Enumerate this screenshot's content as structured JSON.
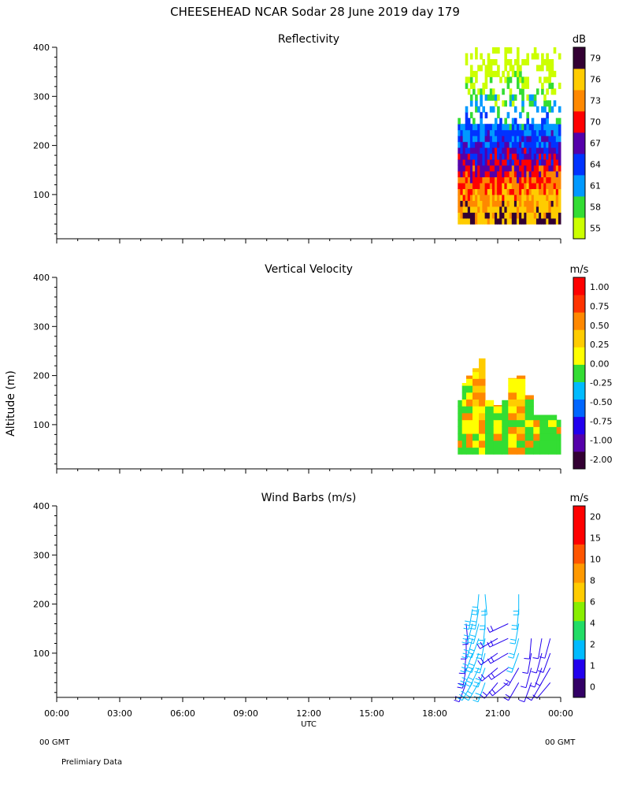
{
  "figure": {
    "title": "CHEESEHEAD  NCAR Sodar  28 June 2019  day 179",
    "ylabel": "Altitude (m)",
    "xlabel": "UTC",
    "left_footer": "00 GMT",
    "right_footer": "00 GMT",
    "footnote": "Prelimiary Data"
  },
  "chart_data": [
    {
      "type": "heatmap",
      "title": "Reflectivity",
      "ylabel": "Altitude (m)",
      "xlabel": "UTC",
      "x_ticks": [
        "00:00",
        "03:00",
        "06:00",
        "09:00",
        "12:00",
        "15:00",
        "18:00",
        "21:00",
        "00:00"
      ],
      "y_ticks": [
        100,
        200,
        300,
        400
      ],
      "xlim_hours": [
        0,
        24
      ],
      "ylim": [
        10,
        400
      ],
      "data_time_range_hours": [
        19.1,
        24.0
      ],
      "data_alt_range_m": [
        40,
        400
      ],
      "colorbar": {
        "unit": "dB",
        "levels": [
          "55",
          "58",
          "61",
          "64",
          "67",
          "70",
          "73",
          "76",
          "79"
        ],
        "colors": [
          "#ccff00",
          "#33dd33",
          "#0099ff",
          "#0033ff",
          "#5500aa",
          "#ff0000",
          "#ff8800",
          "#ffcc00",
          "#330033"
        ]
      },
      "profile": {
        "times_h": [
          19.1,
          19.4,
          19.7,
          20.0,
          20.3,
          20.6,
          20.9,
          21.2,
          21.5,
          21.8,
          22.1,
          22.4,
          22.7,
          23.0,
          23.3,
          23.6,
          23.9
        ],
        "note_levels": "lower altitudes have higher reflectivity (70-79 dB near 40 m), decreasing to 55-58 dB above ~250 m"
      }
    },
    {
      "type": "heatmap",
      "title": "Vertical Velocity",
      "ylabel": "Altitude (m)",
      "xlabel": "UTC",
      "x_ticks": [
        "00:00",
        "03:00",
        "06:00",
        "09:00",
        "12:00",
        "15:00",
        "18:00",
        "21:00",
        "00:00"
      ],
      "y_ticks": [
        100,
        200,
        300,
        400
      ],
      "xlim_hours": [
        0,
        24
      ],
      "ylim": [
        10,
        400
      ],
      "data_time_range_hours": [
        19.1,
        24.0
      ],
      "data_alt_range_m": [
        40,
        240
      ],
      "colorbar": {
        "unit": "m/s",
        "levels": [
          "-2.00",
          "-1.00",
          "-0.75",
          "-0.50",
          "-0.25",
          "0.00",
          "0.25",
          "0.50",
          "0.75",
          "1.00"
        ],
        "colors": [
          "#330033",
          "#5500aa",
          "#2200ee",
          "#0066ff",
          "#00bbff",
          "#33dd33",
          "#ffff00",
          "#ffcc00",
          "#ff8800",
          "#ff3300",
          "#ff0000"
        ]
      }
    },
    {
      "type": "scatter",
      "title": "Wind Barbs (m/s)",
      "ylabel": "Altitude (m)",
      "xlabel": "UTC",
      "x_ticks": [
        "00:00",
        "03:00",
        "06:00",
        "09:00",
        "12:00",
        "15:00",
        "18:00",
        "21:00",
        "00:00"
      ],
      "y_ticks": [
        100,
        200,
        300,
        400
      ],
      "xlim_hours": [
        0,
        24
      ],
      "ylim": [
        10,
        400
      ],
      "colorbar": {
        "unit": "m/s",
        "levels": [
          "0",
          "1",
          "2",
          "4",
          "6",
          "8",
          "10",
          "15",
          "20"
        ],
        "colors": [
          "#330066",
          "#2200ee",
          "#00bbff",
          "#22dd66",
          "#88ee00",
          "#ffcc00",
          "#ff9900",
          "#ff5500",
          "#ff0000",
          "#ff0000"
        ]
      },
      "barbs": [
        {
          "t": 19.5,
          "alt": 40,
          "speed": 1.5,
          "dir": 200
        },
        {
          "t": 19.5,
          "alt": 70,
          "speed": 1.5,
          "dir": 190
        },
        {
          "t": 19.5,
          "alt": 100,
          "speed": 1.2,
          "dir": 185
        },
        {
          "t": 19.5,
          "alt": 130,
          "speed": 1.2,
          "dir": 180
        },
        {
          "t": 19.5,
          "alt": 160,
          "speed": 1.0,
          "dir": 175
        },
        {
          "t": 19.8,
          "alt": 40,
          "speed": 2.5,
          "dir": 210
        },
        {
          "t": 19.8,
          "alt": 70,
          "speed": 2.5,
          "dir": 205
        },
        {
          "t": 19.8,
          "alt": 100,
          "speed": 2.5,
          "dir": 200
        },
        {
          "t": 19.8,
          "alt": 130,
          "speed": 2.5,
          "dir": 195
        },
        {
          "t": 19.8,
          "alt": 160,
          "speed": 2.5,
          "dir": 195
        },
        {
          "t": 19.8,
          "alt": 190,
          "speed": 2.5,
          "dir": 190
        },
        {
          "t": 20.1,
          "alt": 40,
          "speed": 3.0,
          "dir": 210
        },
        {
          "t": 20.1,
          "alt": 70,
          "speed": 3.0,
          "dir": 205
        },
        {
          "t": 20.1,
          "alt": 100,
          "speed": 3.0,
          "dir": 200
        },
        {
          "t": 20.1,
          "alt": 130,
          "speed": 3.0,
          "dir": 200
        },
        {
          "t": 20.1,
          "alt": 160,
          "speed": 3.0,
          "dir": 195
        },
        {
          "t": 20.1,
          "alt": 190,
          "speed": 2.5,
          "dir": 190
        },
        {
          "t": 20.1,
          "alt": 220,
          "speed": 2.5,
          "dir": 185
        },
        {
          "t": 20.4,
          "alt": 40,
          "speed": 2.5,
          "dir": 200
        },
        {
          "t": 20.4,
          "alt": 70,
          "speed": 2.5,
          "dir": 200
        },
        {
          "t": 20.4,
          "alt": 100,
          "speed": 2.0,
          "dir": 195
        },
        {
          "t": 20.4,
          "alt": 130,
          "speed": 2.0,
          "dir": 190
        },
        {
          "t": 20.4,
          "alt": 160,
          "speed": 2.0,
          "dir": 185
        },
        {
          "t": 20.4,
          "alt": 190,
          "speed": 2.0,
          "dir": 180
        },
        {
          "t": 20.4,
          "alt": 220,
          "speed": 2.0,
          "dir": 175
        },
        {
          "t": 21.0,
          "alt": 40,
          "speed": 1.5,
          "dir": 220
        },
        {
          "t": 21.0,
          "alt": 70,
          "speed": 1.5,
          "dir": 230
        },
        {
          "t": 21.0,
          "alt": 100,
          "speed": 1.5,
          "dir": 235
        },
        {
          "t": 21.0,
          "alt": 130,
          "speed": 1.5,
          "dir": 240
        },
        {
          "t": 21.5,
          "alt": 40,
          "speed": 1.5,
          "dir": 230
        },
        {
          "t": 21.5,
          "alt": 70,
          "speed": 1.5,
          "dir": 235
        },
        {
          "t": 21.5,
          "alt": 100,
          "speed": 1.5,
          "dir": 240
        },
        {
          "t": 21.5,
          "alt": 130,
          "speed": 1.5,
          "dir": 245
        },
        {
          "t": 21.5,
          "alt": 160,
          "speed": 1.5,
          "dir": 245
        },
        {
          "t": 22.0,
          "alt": 40,
          "speed": 1.5,
          "dir": 210
        },
        {
          "t": 22.0,
          "alt": 70,
          "speed": 1.5,
          "dir": 210
        },
        {
          "t": 22.0,
          "alt": 100,
          "speed": 2.0,
          "dir": 200
        },
        {
          "t": 22.0,
          "alt": 130,
          "speed": 2.0,
          "dir": 195
        },
        {
          "t": 22.0,
          "alt": 160,
          "speed": 2.0,
          "dir": 190
        },
        {
          "t": 22.0,
          "alt": 190,
          "speed": 2.0,
          "dir": 185
        },
        {
          "t": 22.0,
          "alt": 220,
          "speed": 2.0,
          "dir": 180
        },
        {
          "t": 22.6,
          "alt": 40,
          "speed": 1.0,
          "dir": 200
        },
        {
          "t": 22.6,
          "alt": 70,
          "speed": 1.0,
          "dir": 195
        },
        {
          "t": 22.6,
          "alt": 100,
          "speed": 1.0,
          "dir": 190
        },
        {
          "t": 22.6,
          "alt": 130,
          "speed": 1.0,
          "dir": 185
        },
        {
          "t": 23.1,
          "alt": 40,
          "speed": 1.0,
          "dir": 210
        },
        {
          "t": 23.1,
          "alt": 70,
          "speed": 1.0,
          "dir": 200
        },
        {
          "t": 23.1,
          "alt": 100,
          "speed": 1.0,
          "dir": 195
        },
        {
          "t": 23.1,
          "alt": 130,
          "speed": 1.0,
          "dir": 190
        },
        {
          "t": 23.5,
          "alt": 40,
          "speed": 1.0,
          "dir": 220
        },
        {
          "t": 23.5,
          "alt": 70,
          "speed": 1.0,
          "dir": 210
        },
        {
          "t": 23.5,
          "alt": 100,
          "speed": 1.0,
          "dir": 200
        },
        {
          "t": 23.5,
          "alt": 130,
          "speed": 1.0,
          "dir": 195
        }
      ]
    }
  ]
}
